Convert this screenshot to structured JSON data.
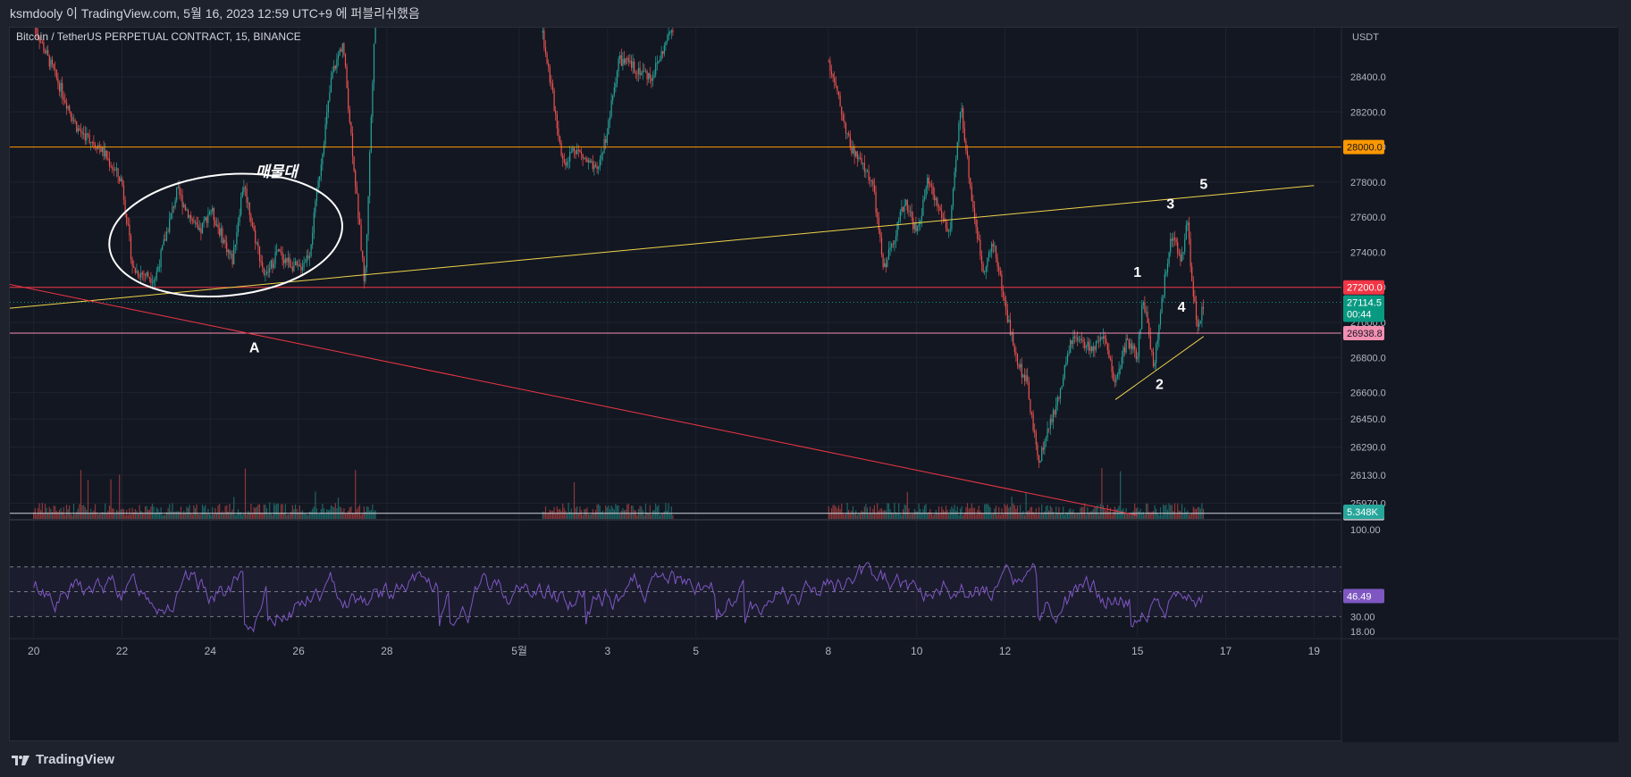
{
  "header": {
    "publish_line": "ksmdooly 이 TradingView.com, 5월 16, 2023 12:59 UTC+9 에 퍼블리쉬했음"
  },
  "footer": {
    "brand": "TradingView",
    "logo_icon": "tradingview-logo-icon"
  },
  "colors": {
    "background": "#131722",
    "grid": "#1f2330",
    "up": "#26a69a",
    "down": "#ef5350",
    "orange": "#ff9800",
    "red_line": "#f23645",
    "pink_line": "#f48fb1",
    "yellow_line": "#f0d44a",
    "white_line": "#d1d4dc",
    "teal_dotted": "#089981",
    "rsi": "#7e57c2"
  },
  "chart_data": [
    {
      "type": "candlestick",
      "title": "Bitcoin / TetherUS PERPETUAL CONTRACT, 15, BINANCE",
      "symbol": "Bitcoin",
      "pair": "TetherUS PERPETUAL CONTRACT",
      "interval": "15",
      "exchange": "BINANCE",
      "currency": "USDT",
      "y_ticks": [
        28400.0,
        28200.0,
        28000.0,
        27800.0,
        27600.0,
        27400.0,
        27200.0,
        27000.0,
        26800.0,
        26600.0,
        26450.0,
        26290.0,
        26130.0,
        25970.0
      ],
      "y_tick_labels": [
        "28400.0",
        "28200.0",
        "28000.0",
        "27800.0",
        "27600.0",
        "27400.0",
        "27200.0",
        "27000.0",
        "26800.0",
        "26600.0",
        "26450.0",
        "26290.0",
        "26130.0",
        "25970.0"
      ],
      "x_ticks": [
        "20",
        "22",
        "24",
        "26",
        "28",
        "5월",
        "3",
        "5",
        "8",
        "10",
        "12",
        "15",
        "17",
        "19"
      ],
      "x_tick_dates": [
        "2023-04-20",
        "2023-04-22",
        "2023-04-24",
        "2023-04-26",
        "2023-04-28",
        "2023-05-01",
        "2023-05-03",
        "2023-05-05",
        "2023-05-08",
        "2023-05-10",
        "2023-05-12",
        "2023-05-15",
        "2023-05-17",
        "2023-05-19"
      ],
      "price_path": [
        [
          "2023-04-20",
          28700
        ],
        [
          "2023-04-21",
          28100
        ],
        [
          "2023-04-21T12",
          28000
        ],
        [
          "2023-04-22",
          27800
        ],
        [
          "2023-04-22T06",
          27300
        ],
        [
          "2023-04-22T18",
          27250
        ],
        [
          "2023-04-23",
          27500
        ],
        [
          "2023-04-23T06",
          27750
        ],
        [
          "2023-04-23T18",
          27500
        ],
        [
          "2023-04-24",
          27650
        ],
        [
          "2023-04-24T12",
          27350
        ],
        [
          "2023-04-24T18",
          27800
        ],
        [
          "2023-04-25",
          27500
        ],
        [
          "2023-04-25T06",
          27250
        ],
        [
          "2023-04-25T12",
          27400
        ],
        [
          "2023-04-26",
          27300
        ],
        [
          "2023-04-26T06",
          27400
        ],
        [
          "2023-04-26T12",
          27900
        ],
        [
          "2023-04-26T18",
          28400
        ],
        [
          "2023-04-27",
          28600
        ],
        [
          "2023-04-27T12",
          27200
        ],
        [
          "2023-04-27T18",
          28900
        ],
        [
          "2023-05-01T12",
          28700
        ],
        [
          "2023-05-01T18",
          28300
        ],
        [
          "2023-05-02",
          27900
        ],
        [
          "2023-05-02T06",
          28000
        ],
        [
          "2023-05-02T18",
          27850
        ],
        [
          "2023-05-03",
          28100
        ],
        [
          "2023-05-03T06",
          28500
        ],
        [
          "2023-05-04",
          28400
        ],
        [
          "2023-05-04T12",
          28700
        ],
        [
          "2023-05-08",
          28500
        ],
        [
          "2023-05-08T12",
          28000
        ],
        [
          "2023-05-09",
          27800
        ],
        [
          "2023-05-09T06",
          27300
        ],
        [
          "2023-05-09T12",
          27500
        ],
        [
          "2023-05-09T18",
          27700
        ],
        [
          "2023-05-10",
          27500
        ],
        [
          "2023-05-10T06",
          27800
        ],
        [
          "2023-05-10T12",
          27650
        ],
        [
          "2023-05-10T18",
          27500
        ],
        [
          "2023-05-11",
          28250
        ],
        [
          "2023-05-11T06",
          27700
        ],
        [
          "2023-05-11T12",
          27300
        ],
        [
          "2023-05-11T18",
          27450
        ],
        [
          "2023-05-12",
          27100
        ],
        [
          "2023-05-12T06",
          26800
        ],
        [
          "2023-05-12T12",
          26650
        ],
        [
          "2023-05-12T18",
          26200
        ],
        [
          "2023-05-13",
          26400
        ],
        [
          "2023-05-13T06",
          26600
        ],
        [
          "2023-05-13T12",
          26900
        ],
        [
          "2023-05-14",
          26850
        ],
        [
          "2023-05-14T06",
          26900
        ],
        [
          "2023-05-14T12",
          26650
        ],
        [
          "2023-05-14T18",
          26900
        ],
        [
          "2023-05-15",
          26800
        ],
        [
          "2023-05-15T03",
          27150
        ],
        [
          "2023-05-15T09",
          26750
        ],
        [
          "2023-05-15T12",
          27000
        ],
        [
          "2023-05-15T18",
          27500
        ],
        [
          "2023-05-16",
          27350
        ],
        [
          "2023-05-16T03",
          27600
        ],
        [
          "2023-05-16T06",
          27200
        ],
        [
          "2023-05-16T09",
          26950
        ],
        [
          "2023-05-16T12",
          27114.5
        ]
      ],
      "horizontal_levels": [
        {
          "price": 28000.0,
          "label": "28000.0",
          "color": "#ff9800"
        },
        {
          "price": 27200.0,
          "label": "27200.0",
          "color": "#f23645"
        },
        {
          "price": 26938.8,
          "label": "26938.8",
          "color": "#f48fb1"
        },
        {
          "price": 25911.6,
          "label": "25911.6",
          "color": "#d1d4dc"
        }
      ],
      "last_price": {
        "price": 27114.5,
        "label": "27114.5",
        "countdown": "00:44",
        "color": "#089981"
      },
      "trend_lines": [
        {
          "name": "rising-resistance",
          "from": [
            "2023-04-19",
            27070
          ],
          "to": [
            "2023-05-19",
            27780
          ],
          "color": "#f0d44a"
        },
        {
          "name": "falling-line",
          "from": [
            "2023-04-19",
            27240
          ],
          "to": [
            "2023-05-15",
            25900
          ],
          "color": "#f23645"
        },
        {
          "name": "support-short",
          "from": [
            "2023-05-14T12",
            26560
          ],
          "to": [
            "2023-05-16T12",
            26920
          ],
          "color": "#f0d44a"
        }
      ],
      "annotations": [
        {
          "text": "매물대",
          "x": "2023-04-25T12",
          "y": 27830
        },
        {
          "text": "A",
          "x": "2023-04-25",
          "y": 26830
        },
        {
          "text": "1",
          "x": "2023-05-15",
          "y": 27260
        },
        {
          "text": "2",
          "x": "2023-05-15T12",
          "y": 26620
        },
        {
          "text": "3",
          "x": "2023-05-15T18",
          "y": 27650
        },
        {
          "text": "4",
          "x": "2023-05-16",
          "y": 27060
        },
        {
          "text": "5",
          "x": "2023-05-16T12",
          "y": 27760
        }
      ],
      "volume_label": "5.348K",
      "ellipse_zone": {
        "x_from": "2023-04-21T12",
        "x_to": "2023-04-27",
        "y_from": 27150,
        "y_to": 27840
      }
    },
    {
      "type": "line",
      "title": "RSI",
      "y_ticks": [
        100.0,
        30.0,
        18.0
      ],
      "y_tick_labels": [
        "100.00",
        "30.00",
        "18.00"
      ],
      "bands": [
        70,
        50,
        30
      ],
      "last_value": {
        "value": 46.49,
        "label": "46.49"
      }
    }
  ]
}
